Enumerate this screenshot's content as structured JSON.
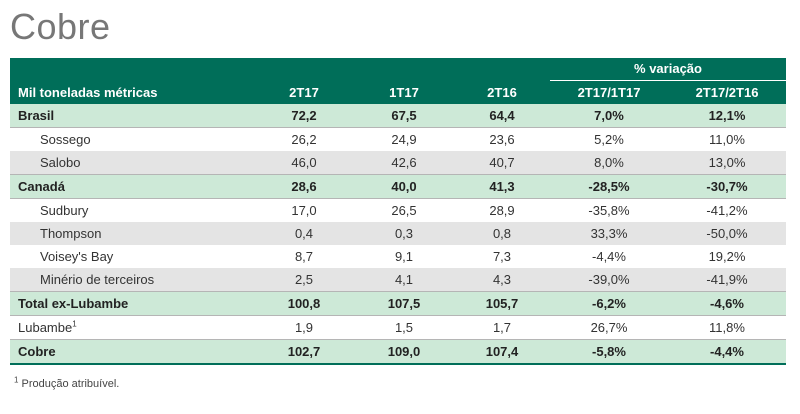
{
  "title": "Cobre",
  "table": {
    "unit_label": "Mil toneladas métricas",
    "variation_label": "% variação",
    "columns": [
      "2T17",
      "1T17",
      "2T16",
      "2T17/1T17",
      "2T17/2T16"
    ],
    "rows": [
      {
        "label": "Brasil",
        "type": "group",
        "values": [
          "72,2",
          "67,5",
          "64,4",
          "7,0%",
          "12,1%"
        ]
      },
      {
        "label": "Sossego",
        "type": "sub",
        "values": [
          "26,2",
          "24,9",
          "23,6",
          "5,2%",
          "11,0%"
        ]
      },
      {
        "label": "Salobo",
        "type": "sub-shade",
        "values": [
          "46,0",
          "42,6",
          "40,7",
          "8,0%",
          "13,0%"
        ]
      },
      {
        "label": "Canadá",
        "type": "group",
        "values": [
          "28,6",
          "40,0",
          "41,3",
          "-28,5%",
          "-30,7%"
        ]
      },
      {
        "label": "Sudbury",
        "type": "sub",
        "values": [
          "17,0",
          "26,5",
          "28,9",
          "-35,8%",
          "-41,2%"
        ]
      },
      {
        "label": "Thompson",
        "type": "sub-shade",
        "values": [
          "0,4",
          "0,3",
          "0,8",
          "33,3%",
          "-50,0%"
        ]
      },
      {
        "label": "Voisey's Bay",
        "type": "sub",
        "values": [
          "8,7",
          "9,1",
          "7,3",
          "-4,4%",
          "19,2%"
        ]
      },
      {
        "label": "Minério de terceiros",
        "type": "sub-shade",
        "values": [
          "2,5",
          "4,1",
          "4,3",
          "-39,0%",
          "-41,9%"
        ]
      },
      {
        "label": "Total ex-Lubambe",
        "type": "group",
        "values": [
          "100,8",
          "107,5",
          "105,7",
          "-6,2%",
          "-4,6%"
        ]
      },
      {
        "label": "Lubambe",
        "sup": "1",
        "type": "plain",
        "values": [
          "1,9",
          "1,5",
          "1,7",
          "26,7%",
          "11,8%"
        ]
      },
      {
        "label": "Cobre",
        "type": "group-final",
        "values": [
          "102,7",
          "109,0",
          "107,4",
          "-5,8%",
          "-4,4%"
        ]
      }
    ]
  },
  "footnote": {
    "marker": "1",
    "text": " Produção atribuível."
  },
  "colors": {
    "header_green": "#006e59",
    "group_green": "#cde9d7",
    "shade_gray": "#e4e4e4"
  }
}
